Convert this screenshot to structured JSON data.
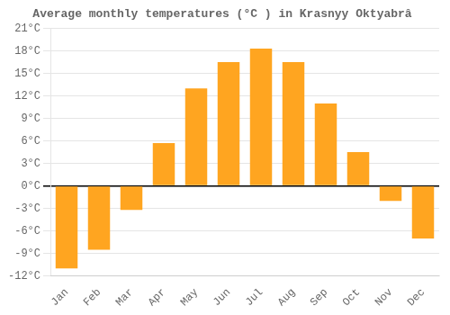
{
  "chart_data": {
    "type": "bar",
    "title": "Average monthly temperatures (°C ) in Krasnyy Oktyabrâ",
    "categories": [
      "Jan",
      "Feb",
      "Mar",
      "Apr",
      "May",
      "Jun",
      "Jul",
      "Aug",
      "Sep",
      "Oct",
      "Nov",
      "Dec"
    ],
    "values": [
      -11,
      -8.5,
      -3.2,
      5.7,
      13.0,
      16.5,
      18.3,
      16.5,
      11.0,
      4.5,
      -2.0,
      -7.0
    ],
    "color": "#FFA520",
    "ylim": [
      -12,
      21
    ],
    "yticks": [
      {
        "value": -12,
        "label": "-12°C"
      },
      {
        "value": -9,
        "label": "-9°C"
      },
      {
        "value": -6,
        "label": "-6°C"
      },
      {
        "value": -3,
        "label": "-3°C"
      },
      {
        "value": 0,
        "label": "0°C"
      },
      {
        "value": 3,
        "label": "3°C"
      },
      {
        "value": 6,
        "label": "6°C"
      },
      {
        "value": 9,
        "label": "9°C"
      },
      {
        "value": 12,
        "label": "12°C"
      },
      {
        "value": 15,
        "label": "15°C"
      },
      {
        "value": 18,
        "label": "18°C"
      },
      {
        "value": 21,
        "label": "21°C"
      }
    ],
    "grid": true
  }
}
